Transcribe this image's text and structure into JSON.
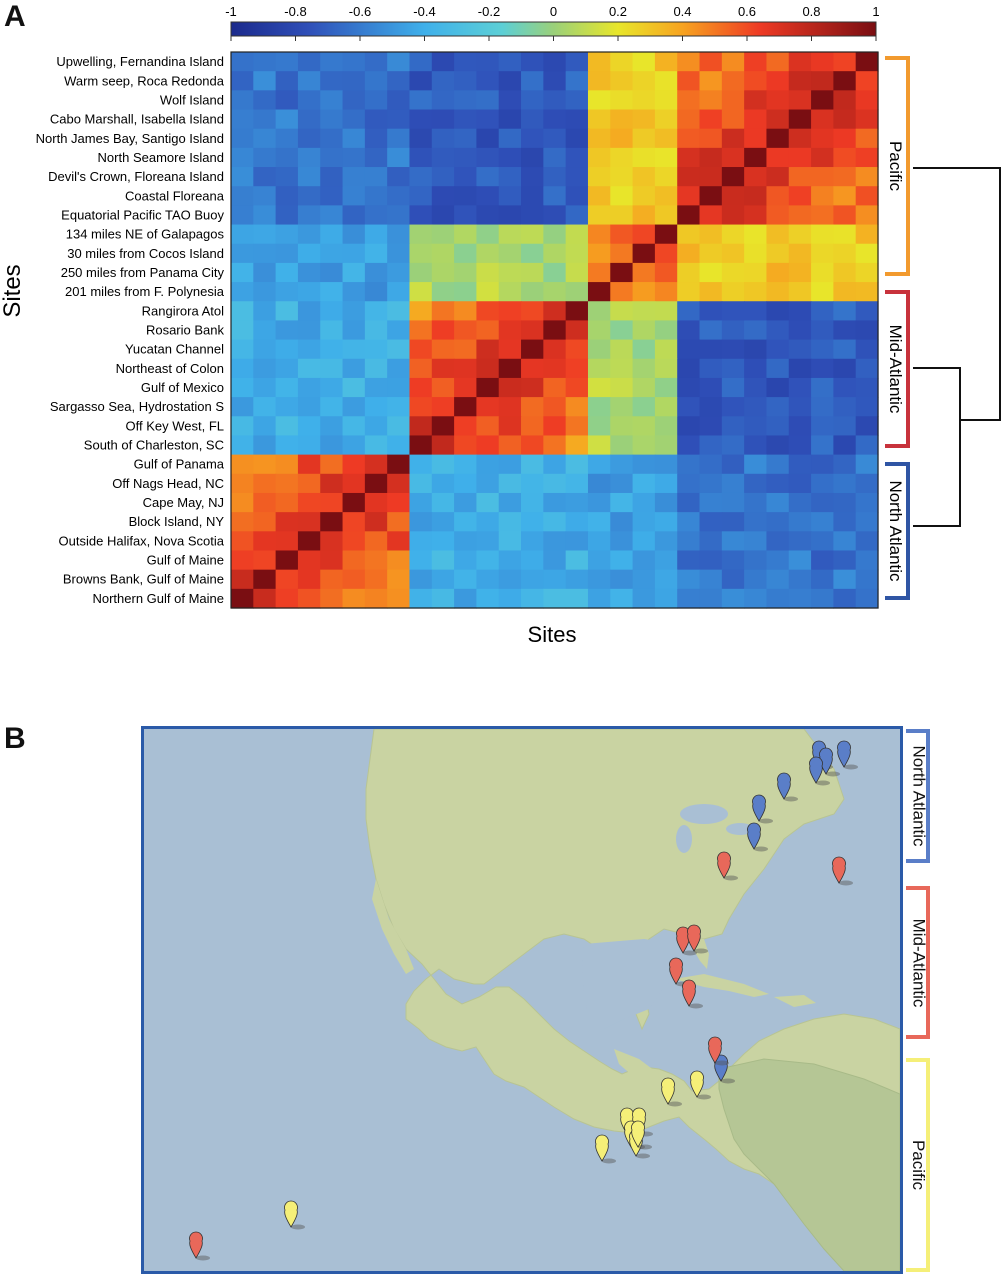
{
  "panels": {
    "a": "A",
    "b": "B"
  },
  "chart_data": [
    {
      "type": "heatmap",
      "x_axis_label": "Sites",
      "y_axis_label": "Sites",
      "colorbar": {
        "min": -1,
        "max": 1,
        "ticks": [
          "-1",
          "-0.8",
          "-0.6",
          "-0.4",
          "-0.2",
          "0",
          "0.2",
          "0.4",
          "0.6",
          "0.8",
          "1"
        ]
      },
      "sites": [
        "Upwelling, Fernandina Island",
        "Warm seep, Roca Redonda",
        "Wolf Island",
        "Cabo Marshall, Isabella Island",
        "North James Bay, Santigo Island",
        "North Seamore Island",
        "Devil's Crown, Floreana Island",
        "Coastal Floreana",
        "Equatorial Pacific TAO Buoy",
        "134 miles NE of Galapagos",
        "30 miles from Cocos Island",
        "250 miles from Panama City",
        "201 miles from F. Polynesia",
        "Rangirora Atol",
        "Rosario Bank",
        "Yucatan Channel",
        "Northeast of Colon",
        "Gulf of Mexico",
        "Sargasso Sea, Hydrostation S",
        "Off Key West, FL",
        "South of Charleston, SC",
        "Gulf of Panama",
        "Off Nags Head, NC",
        "Cape May, NJ",
        "Block Island, NY",
        "Outside Halifax, Nova Scotia",
        "Gulf of Maine",
        "Browns Bank, Gulf of Maine",
        "Northern Gulf of Maine"
      ],
      "groups": [
        {
          "name": "Pacific",
          "color": "#f29a2e",
          "rows": [
            0,
            12
          ]
        },
        {
          "name": "Mid-Atlantic",
          "color": "#c8323c",
          "rows": [
            13,
            20
          ]
        },
        {
          "name": "North Atlantic",
          "color": "#2f55a4",
          "rows": [
            21,
            28
          ]
        }
      ],
      "dendrogram": "Mid-Atlantic and North Atlantic join first, then join Pacific"
    },
    {
      "type": "map",
      "region": "North and Central America, Caribbean, eastern Pacific",
      "legend": [
        {
          "name": "North Atlantic",
          "color": "#5a7ec8"
        },
        {
          "name": "Mid-Atlantic",
          "color": "#e8685a"
        },
        {
          "name": "Pacific",
          "color": "#f5ef78"
        }
      ]
    }
  ]
}
